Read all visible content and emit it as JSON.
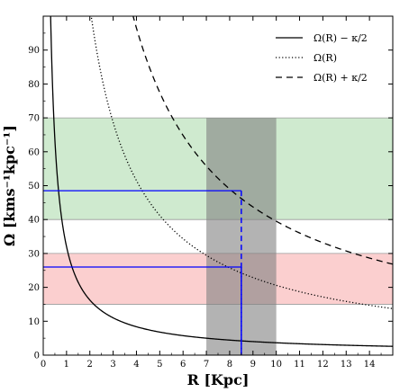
{
  "chart_data": {
    "type": "line",
    "title": "",
    "xlabel": "R [Kpc]",
    "ylabel": "Ω [kms⁻¹kpc⁻¹]",
    "xlim": [
      0,
      15
    ],
    "ylim": [
      0,
      100
    ],
    "x_ticks": [
      0,
      1,
      2,
      3,
      4,
      5,
      6,
      7,
      8,
      9,
      10,
      11,
      12,
      13,
      14
    ],
    "y_ticks": [
      0,
      10,
      20,
      30,
      40,
      50,
      60,
      70,
      80,
      90
    ],
    "grid": false,
    "legend_position": "top-right",
    "series": [
      {
        "name": "Ω(R) − κ/2",
        "style": "solid",
        "color": "#000000",
        "function": "omega_minus_kappa_half",
        "x": [
          0.35,
          0.5,
          1,
          2,
          4,
          6,
          8,
          10,
          12,
          15
        ],
        "y": [
          100,
          80,
          23.9,
          11.5,
          6.1,
          4.15,
          3.0,
          2.3,
          1.8,
          1.4
        ]
      },
      {
        "name": "Ω(R)",
        "style": "dotted",
        "color": "#000000",
        "function": "omega",
        "x": [
          2,
          3,
          4,
          5,
          6,
          7,
          8,
          8.5,
          10,
          12,
          15
        ],
        "y": [
          100,
          71,
          50.5,
          41.5,
          34.5,
          29.5,
          25.8,
          24.3,
          20.7,
          17.3,
          14.0
        ]
      },
      {
        "name": "Ω(R) + κ/2",
        "style": "dashed",
        "color": "#000000",
        "function": "omega_plus_kappa_half",
        "x": [
          3.9,
          5,
          6,
          7,
          8,
          8.5,
          10,
          12,
          15
        ],
        "y": [
          100,
          79,
          65.5,
          56.5,
          49.5,
          46.6,
          39.5,
          33.0,
          26.8
        ]
      }
    ],
    "bands": [
      {
        "label": "green-band",
        "axis": "y",
        "range": [
          40,
          70
        ],
        "color": "#a8d8a8"
      },
      {
        "label": "red-band",
        "axis": "y",
        "range": [
          15,
          30
        ],
        "color": "#f8a8a8"
      },
      {
        "label": "gray-band",
        "axis": "x",
        "range": [
          7,
          10
        ],
        "color": "#808080"
      }
    ],
    "markers": [
      {
        "label": "upper-marker",
        "x": 8.5,
        "y": 48.5,
        "color": "#0000ff"
      },
      {
        "label": "lower-marker",
        "x": 8.5,
        "y": 26,
        "color": "#0000ff"
      }
    ]
  }
}
